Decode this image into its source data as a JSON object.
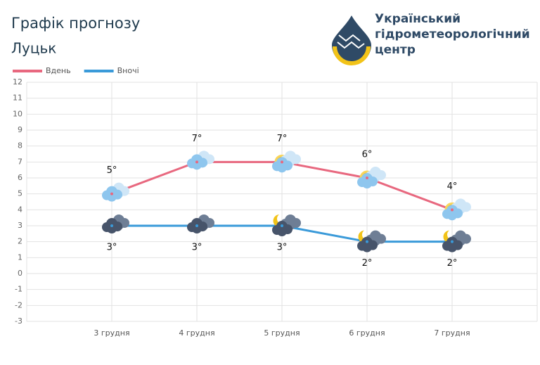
{
  "header": {
    "organization": [
      "Український",
      "гідрометеорологічний",
      "центр"
    ]
  },
  "chart_data": {
    "type": "line",
    "title": "Графік прогнозу",
    "subtitle": "Луцьк",
    "categories": [
      null,
      "3 грудня",
      "4 грудня",
      "5 грудня",
      "6 грудня",
      "7 грудня",
      null
    ],
    "series": [
      {
        "name": "Вдень",
        "color": "#e8687f",
        "values": [
          null,
          5,
          7,
          7,
          6,
          4,
          null
        ],
        "value_labels": [
          null,
          "5°",
          "7°",
          "7°",
          "6°",
          "4°",
          null
        ]
      },
      {
        "name": "Вночі",
        "color": "#3a9ad9",
        "values": [
          null,
          3,
          3,
          3,
          2,
          2,
          null
        ],
        "value_labels": [
          null,
          "3°",
          "3°",
          "3°",
          "2°",
          "2°",
          null
        ]
      }
    ],
    "ylim": [
      -3,
      12
    ],
    "yticks": [
      -3,
      -2,
      -1,
      0,
      1,
      2,
      3,
      4,
      5,
      6,
      7,
      8,
      9,
      10,
      11,
      12
    ],
    "grid": true,
    "legend": "top-left"
  }
}
